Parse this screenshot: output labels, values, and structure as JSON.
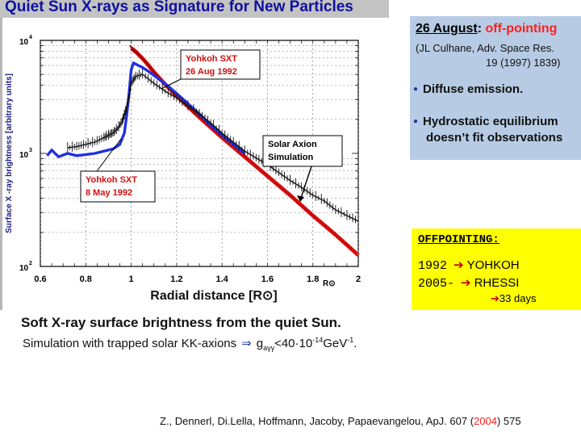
{
  "header": {
    "title": "Quiet Sun X-rays as Signature for New Particles"
  },
  "right_panel": {
    "heading_date": "26 August",
    "heading_sep": ": ",
    "heading_rest": "off-pointing",
    "ref_line1": "(JL Culhane, Adv. Space Res.",
    "ref_line2": "19 (1997) 1839)",
    "bullet1": "Diffuse emission.",
    "bullet2_line1": "Hydrostatic equilibrium",
    "bullet2_line2": "doesn’t fit observations"
  },
  "offpointing": {
    "title": "OFFPOINTING:",
    "rows": [
      {
        "year": "1992",
        "arrow": "➔",
        "target": "YOHKOH"
      },
      {
        "year": "2005-",
        "arrow": "➔",
        "target": "RHESSI"
      }
    ],
    "days_arrow": "➔",
    "days": "33 days"
  },
  "caption": {
    "line1": "Soft X-ray surface brightness from the quiet Sun.",
    "line2_prefix": "Simulation with trapped solar KK-axions",
    "implies": "⇒",
    "g": "g",
    "g_sub": "aγγ",
    "bound": "<40·10",
    "exp": "-14",
    "unit": "GeV",
    "unit_exp": "-1",
    "end": "."
  },
  "reference": {
    "before": "Z., Dennerl, Di.Lella, Hoffmann, Jacoby, Papaevangelou, ApJ. 607 (",
    "year": "2004",
    "after": ") 575"
  },
  "chart_data": {
    "type": "line",
    "title": "",
    "xlabel": "Radial distance [R⊙]",
    "ylabel": "Surface X -ray brightness [arbitrary units]",
    "xlim": [
      0.6,
      2.0
    ],
    "ylim_log10": [
      2,
      4
    ],
    "x_ticks": [
      "0.6",
      "0.8",
      "1",
      "1.2",
      "1.4",
      "1.6",
      "1.8",
      "2"
    ],
    "x_tick_values": [
      0.6,
      0.8,
      1.0,
      1.2,
      1.4,
      1.6,
      1.8,
      2.0
    ],
    "y_ticks": [
      {
        "base": "10",
        "exp": "4",
        "log": 4
      },
      {
        "base": "10",
        "exp": "3",
        "log": 3
      },
      {
        "base": "10",
        "exp": "2",
        "log": 2
      }
    ],
    "extra_axis_label": "R⊙",
    "colors": {
      "may": "#2030e0",
      "aug": "#ee1c1c",
      "sim": "#111111",
      "label": "#d01010"
    },
    "series": [
      {
        "name": "Yohkoh SXT 8 May 1992",
        "label_line1": "Yohkoh SXT",
        "label_line2": "8 May 1992",
        "x": [
          0.63,
          0.65,
          0.68,
          0.72,
          0.76,
          0.8,
          0.84,
          0.88,
          0.92,
          0.95,
          0.97,
          0.98,
          0.99,
          1.0,
          1.01,
          1.02,
          1.05,
          1.08,
          1.12,
          1.16,
          1.2,
          1.25,
          1.3,
          1.35,
          1.4,
          1.45,
          1.5
        ],
        "y": [
          2.98,
          3.03,
          2.97,
          3.0,
          2.98,
          2.99,
          3.0,
          3.02,
          3.04,
          3.08,
          3.18,
          3.33,
          3.52,
          3.74,
          3.8,
          3.79,
          3.76,
          3.72,
          3.66,
          3.6,
          3.53,
          3.44,
          3.35,
          3.25,
          3.16,
          3.08,
          3.0
        ]
      },
      {
        "name": "Yohkoh SXT 26 Aug 1992",
        "label_line1": "Yohkoh SXT",
        "label_line2": "26 Aug 1992",
        "x": [
          1.0,
          1.02,
          1.05,
          1.08,
          1.1,
          1.15,
          1.2,
          1.3,
          1.4,
          1.5,
          1.6,
          1.7,
          1.8,
          1.9,
          2.0
        ],
        "y": [
          3.93,
          3.9,
          3.84,
          3.77,
          3.72,
          3.61,
          3.51,
          3.32,
          3.14,
          2.97,
          2.8,
          2.63,
          2.45,
          2.28,
          2.1
        ]
      },
      {
        "name": "Solar Axion Simulation",
        "label_line1": "Solar Axion",
        "label_line2": "Simulation",
        "x": [
          0.72,
          0.76,
          0.8,
          0.84,
          0.88,
          0.9,
          0.92,
          0.94,
          0.96,
          0.97,
          0.98,
          0.99,
          1.0,
          1.02,
          1.05,
          1.1,
          1.15,
          1.2,
          1.25,
          1.3,
          1.35,
          1.4,
          1.45,
          1.5,
          1.55,
          1.6,
          1.65,
          1.7,
          1.75,
          1.8,
          1.85,
          1.9,
          1.95,
          2.0
        ],
        "y": [
          3.05,
          3.06,
          3.08,
          3.1,
          3.14,
          3.16,
          3.18,
          3.22,
          3.28,
          3.34,
          3.4,
          3.5,
          3.62,
          3.68,
          3.7,
          3.62,
          3.55,
          3.49,
          3.42,
          3.35,
          3.27,
          3.18,
          3.1,
          3.02,
          2.96,
          2.9,
          2.83,
          2.76,
          2.7,
          2.63,
          2.58,
          2.5,
          2.45,
          2.4
        ]
      }
    ]
  }
}
